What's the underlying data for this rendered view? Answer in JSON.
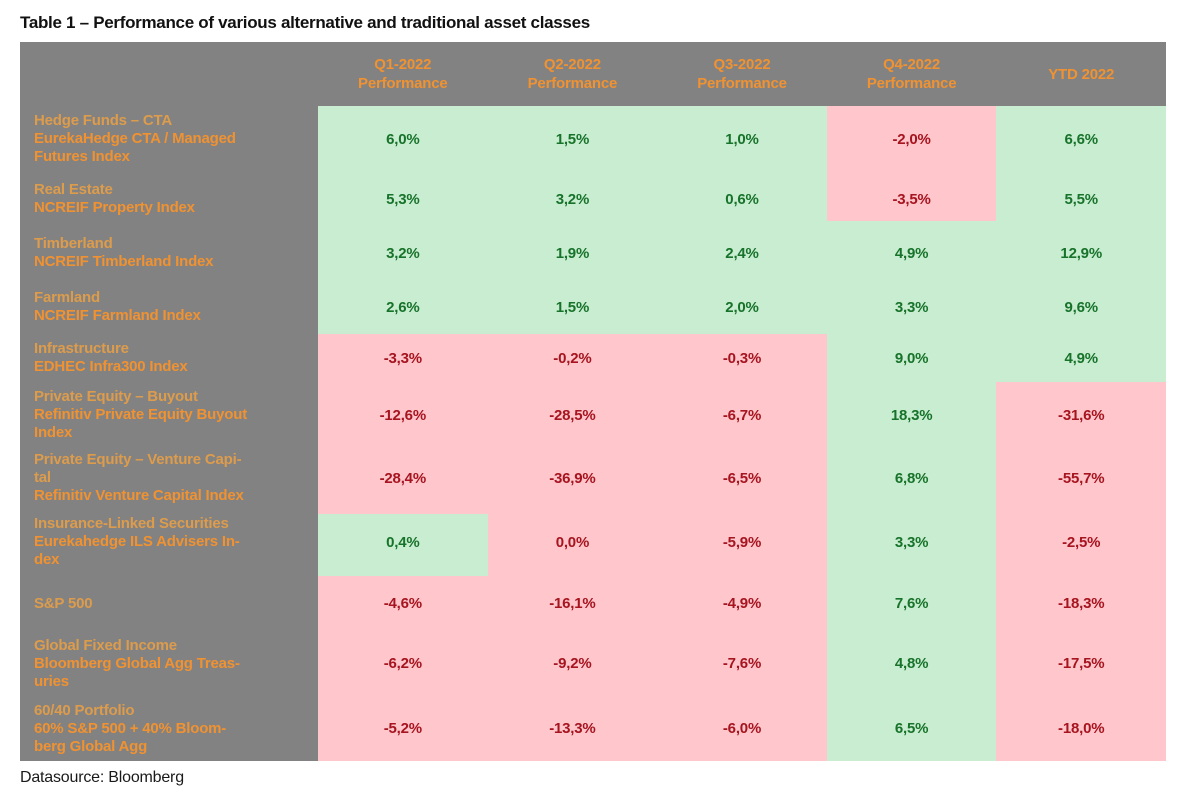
{
  "title": "Table 1 – Performance of various alternative and traditional asset classes",
  "footer": "Datasource: Bloomberg",
  "colors": {
    "gray": "#828282",
    "orange": "#f09231",
    "orange_muted": "#dd9c4c",
    "green_bg": "#c9edd1",
    "red_bg": "#ffc6cc",
    "green_text": "#17732a",
    "red_text": "#a6141f"
  },
  "columns": [
    "Q1-2022\nPerformance",
    "Q2-2022\nPerformance",
    "Q3-2022\nPerformance",
    "Q4-2022\nPerformance",
    "YTD 2022"
  ],
  "rows": [
    {
      "name": "Hedge Funds – CTA",
      "index": "EurekaHedge CTA / Managed\nFutures Index",
      "h": 66,
      "values": [
        "6,0%",
        "1,5%",
        "1,0%",
        "-2,0%",
        "6,6%"
      ],
      "colors": [
        "g",
        "g",
        "g",
        "r",
        "g"
      ]
    },
    {
      "name": "Real Estate",
      "index": "NCREIF Property Index",
      "h": 54,
      "values": [
        "5,3%",
        "3,2%",
        "0,6%",
        "-3,5%",
        "5,5%"
      ],
      "colors": [
        "g",
        "g",
        "g",
        "r ib",
        "g"
      ]
    },
    {
      "name": "Timberland",
      "index": "NCREIF Timberland Index",
      "h": 54,
      "values": [
        "3,2%",
        "1,9%",
        "2,4%",
        "4,9%",
        "12,9%"
      ],
      "colors": [
        "g",
        "g",
        "g",
        "g",
        "g"
      ]
    },
    {
      "name": "Farmland",
      "index": "NCREIF Farmland Index",
      "h": 54,
      "values": [
        "2,6%",
        "1,5%",
        "2,0%",
        "3,3%",
        "9,6%"
      ],
      "colors": [
        "g",
        "g",
        "g",
        "g",
        "g"
      ]
    },
    {
      "name": "Infrastructure",
      "index": "EDHEC Infra300 Index",
      "h": 48,
      "values": [
        "-3,3%",
        "-0,2%",
        "-0,3%",
        "9,0%",
        "4,9%"
      ],
      "colors": [
        "r",
        "r",
        "r",
        "g",
        "g"
      ]
    },
    {
      "name": "Private Equity – Buyout",
      "index": "Refinitiv Private Equity Buyout\nIndex",
      "h": 66,
      "values": [
        "-12,6%",
        "-28,5%",
        "-6,7%",
        "18,3%",
        "-31,6%"
      ],
      "colors": [
        "r",
        "r",
        "r",
        "g",
        "r"
      ]
    },
    {
      "name": "Private Equity – Venture Capi-\ntal",
      "index": "Refinitiv Venture Capital Index",
      "h": 60,
      "values": [
        "-28,4%",
        "-36,9%",
        "-6,5%",
        "6,8%",
        "-55,7%"
      ],
      "colors": [
        "r",
        "r",
        "r",
        "g",
        "r"
      ]
    },
    {
      "name": "Insurance-Linked Securities",
      "index": "Eurekahedge ILS Advisers In-\ndex",
      "h": 68,
      "values": [
        "0,4%",
        "0,0%",
        "-5,9%",
        "3,3%",
        "-2,5%"
      ],
      "colors": [
        "g it",
        "r",
        "r",
        "g",
        "r"
      ]
    },
    {
      "name": "S&P 500",
      "index": "",
      "h": 55,
      "values": [
        "-4,6%",
        "-16,1%",
        "-4,9%",
        "7,6%",
        "-18,3%"
      ],
      "colors": [
        "r",
        "r",
        "r",
        "g",
        "r"
      ]
    },
    {
      "name": "Global Fixed Income",
      "index": "Bloomberg Global Agg Treas-\nuries",
      "h": 65,
      "values": [
        "-6,2%",
        "-9,2%",
        "-7,6%",
        "4,8%",
        "-17,5%"
      ],
      "colors": [
        "r",
        "r",
        "r",
        "g",
        "r"
      ]
    },
    {
      "name": "60/40 Portfolio",
      "index": "60% S&P 500 + 40% Bloom-\nberg Global Agg",
      "h": 65,
      "values": [
        "-5,2%",
        "-13,3%",
        "-6,0%",
        "6,5%",
        "-18,0%"
      ],
      "colors": [
        "r",
        "r",
        "r",
        "g",
        "r"
      ]
    }
  ]
}
